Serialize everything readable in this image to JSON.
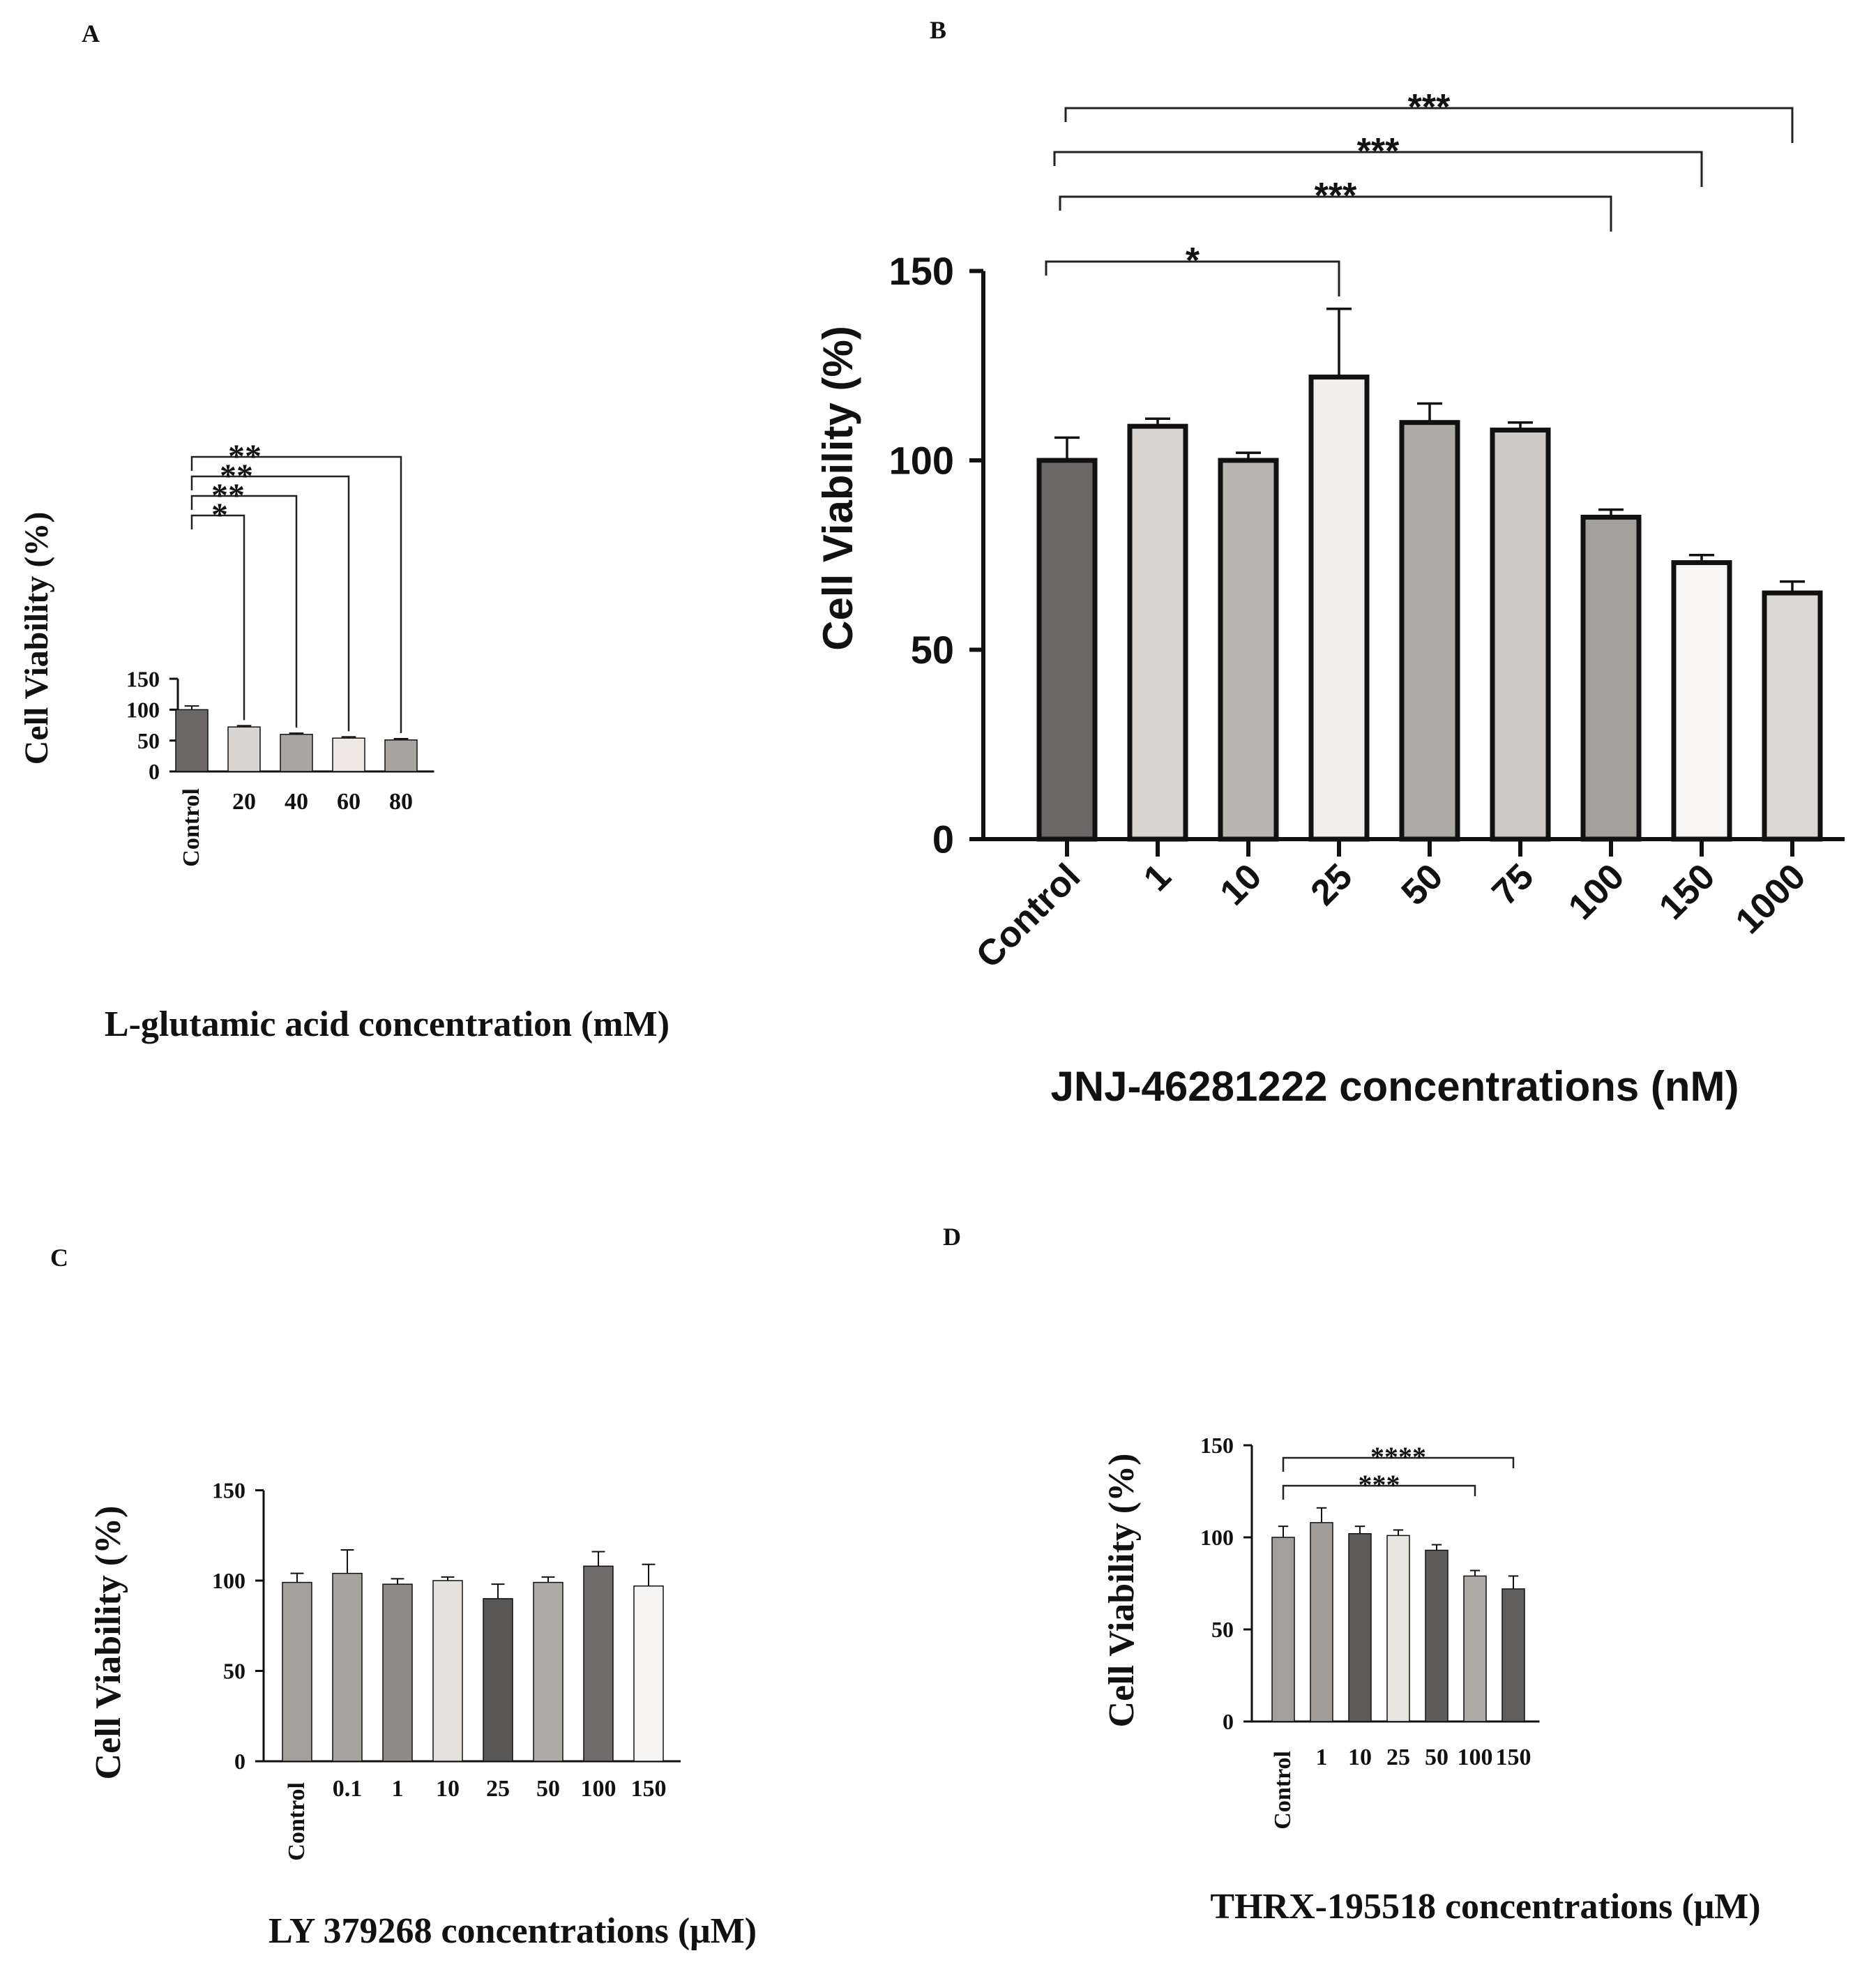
{
  "chart_data": [
    {
      "type": "bar",
      "panel": "A",
      "categories": [
        "Control",
        "20",
        "40",
        "60",
        "80"
      ],
      "values": [
        100,
        72,
        60,
        54,
        51
      ],
      "errors": [
        6,
        2,
        2,
        2,
        2
      ],
      "colors": [
        "#6b6767",
        "#d9d5d2",
        "#aaa6a2",
        "#ede8e4",
        "#a7a4a0"
      ],
      "ylabel": "Cell Viability (%)",
      "xlabel": "L-glutamic acid concentration (mM)",
      "yticks": [
        0,
        50,
        100,
        150
      ],
      "ylim": [
        0,
        150
      ],
      "significance": [
        {
          "from": 0,
          "to": 1,
          "label": "*"
        },
        {
          "from": 0,
          "to": 2,
          "label": "**"
        },
        {
          "from": 0,
          "to": 3,
          "label": "**"
        },
        {
          "from": 0,
          "to": 4,
          "label": "**"
        }
      ]
    },
    {
      "type": "bar",
      "panel": "B",
      "categories": [
        "Control",
        "1",
        "10",
        "25",
        "50",
        "75",
        "100",
        "150",
        "1000"
      ],
      "values": [
        100,
        109,
        100,
        122,
        110,
        108,
        85,
        73,
        65
      ],
      "errors": [
        6,
        2,
        2,
        18,
        5,
        2,
        2,
        2,
        3
      ],
      "colors": [
        "#6b6767",
        "#d6d3d1",
        "#b9b5b1",
        "#f1efed",
        "#adaaa6",
        "#cdc9c6",
        "#a3a09c",
        "#f8f7f6",
        "#dbd8d5"
      ],
      "ylabel": "Cell Viability (%)",
      "xlabel": "JNJ-46281222 concentrations (nM)",
      "yticks": [
        0,
        50,
        100,
        150
      ],
      "ylim": [
        0,
        150
      ],
      "significance": [
        {
          "from": 0,
          "to": 3,
          "label": "*"
        },
        {
          "from": 0,
          "to": 6,
          "label": "***"
        },
        {
          "from": 0,
          "to": 7,
          "label": "***"
        },
        {
          "from": 0,
          "to": 8,
          "label": "***"
        }
      ]
    },
    {
      "type": "bar",
      "panel": "C",
      "categories": [
        "Control",
        "0.1",
        "1",
        "10",
        "25",
        "50",
        "100",
        "150"
      ],
      "values": [
        99,
        104,
        98,
        100,
        90,
        99,
        108,
        97
      ],
      "errors": [
        5,
        13,
        3,
        2,
        8,
        3,
        8,
        12
      ],
      "colors": [
        "#a3a09c",
        "#a7a4a0",
        "#8f8b88",
        "#e4e1dc",
        "#595656",
        "#aeaba7",
        "#6f6b6b",
        "#f6f5f4"
      ],
      "ylabel": "Cell Viability (%)",
      "xlabel": "LY 379268 concentrations (μM)",
      "yticks": [
        0,
        50,
        100,
        150
      ],
      "ylim": [
        0,
        150
      ],
      "significance": []
    },
    {
      "type": "bar",
      "panel": "D",
      "categories": [
        "Control",
        "1",
        "10",
        "25",
        "50",
        "100",
        "150"
      ],
      "values": [
        100,
        108,
        102,
        101,
        93,
        79,
        72
      ],
      "errors": [
        6,
        8,
        4,
        3,
        3,
        3,
        7
      ],
      "colors": [
        "#a3a09c",
        "#a19e9a",
        "#5c5959",
        "#e8e5e1",
        "#5f5c5c",
        "#aeaba7",
        "#615e5e"
      ],
      "ylabel": "Cell Viability (%)",
      "xlabel": "THRX-195518 concentrations (μM)",
      "yticks": [
        0,
        50,
        100,
        150
      ],
      "ylim": [
        0,
        150
      ],
      "significance": [
        {
          "from": 0,
          "to": 5,
          "label": "***"
        },
        {
          "from": 0,
          "to": 6,
          "label": "****"
        }
      ]
    }
  ]
}
